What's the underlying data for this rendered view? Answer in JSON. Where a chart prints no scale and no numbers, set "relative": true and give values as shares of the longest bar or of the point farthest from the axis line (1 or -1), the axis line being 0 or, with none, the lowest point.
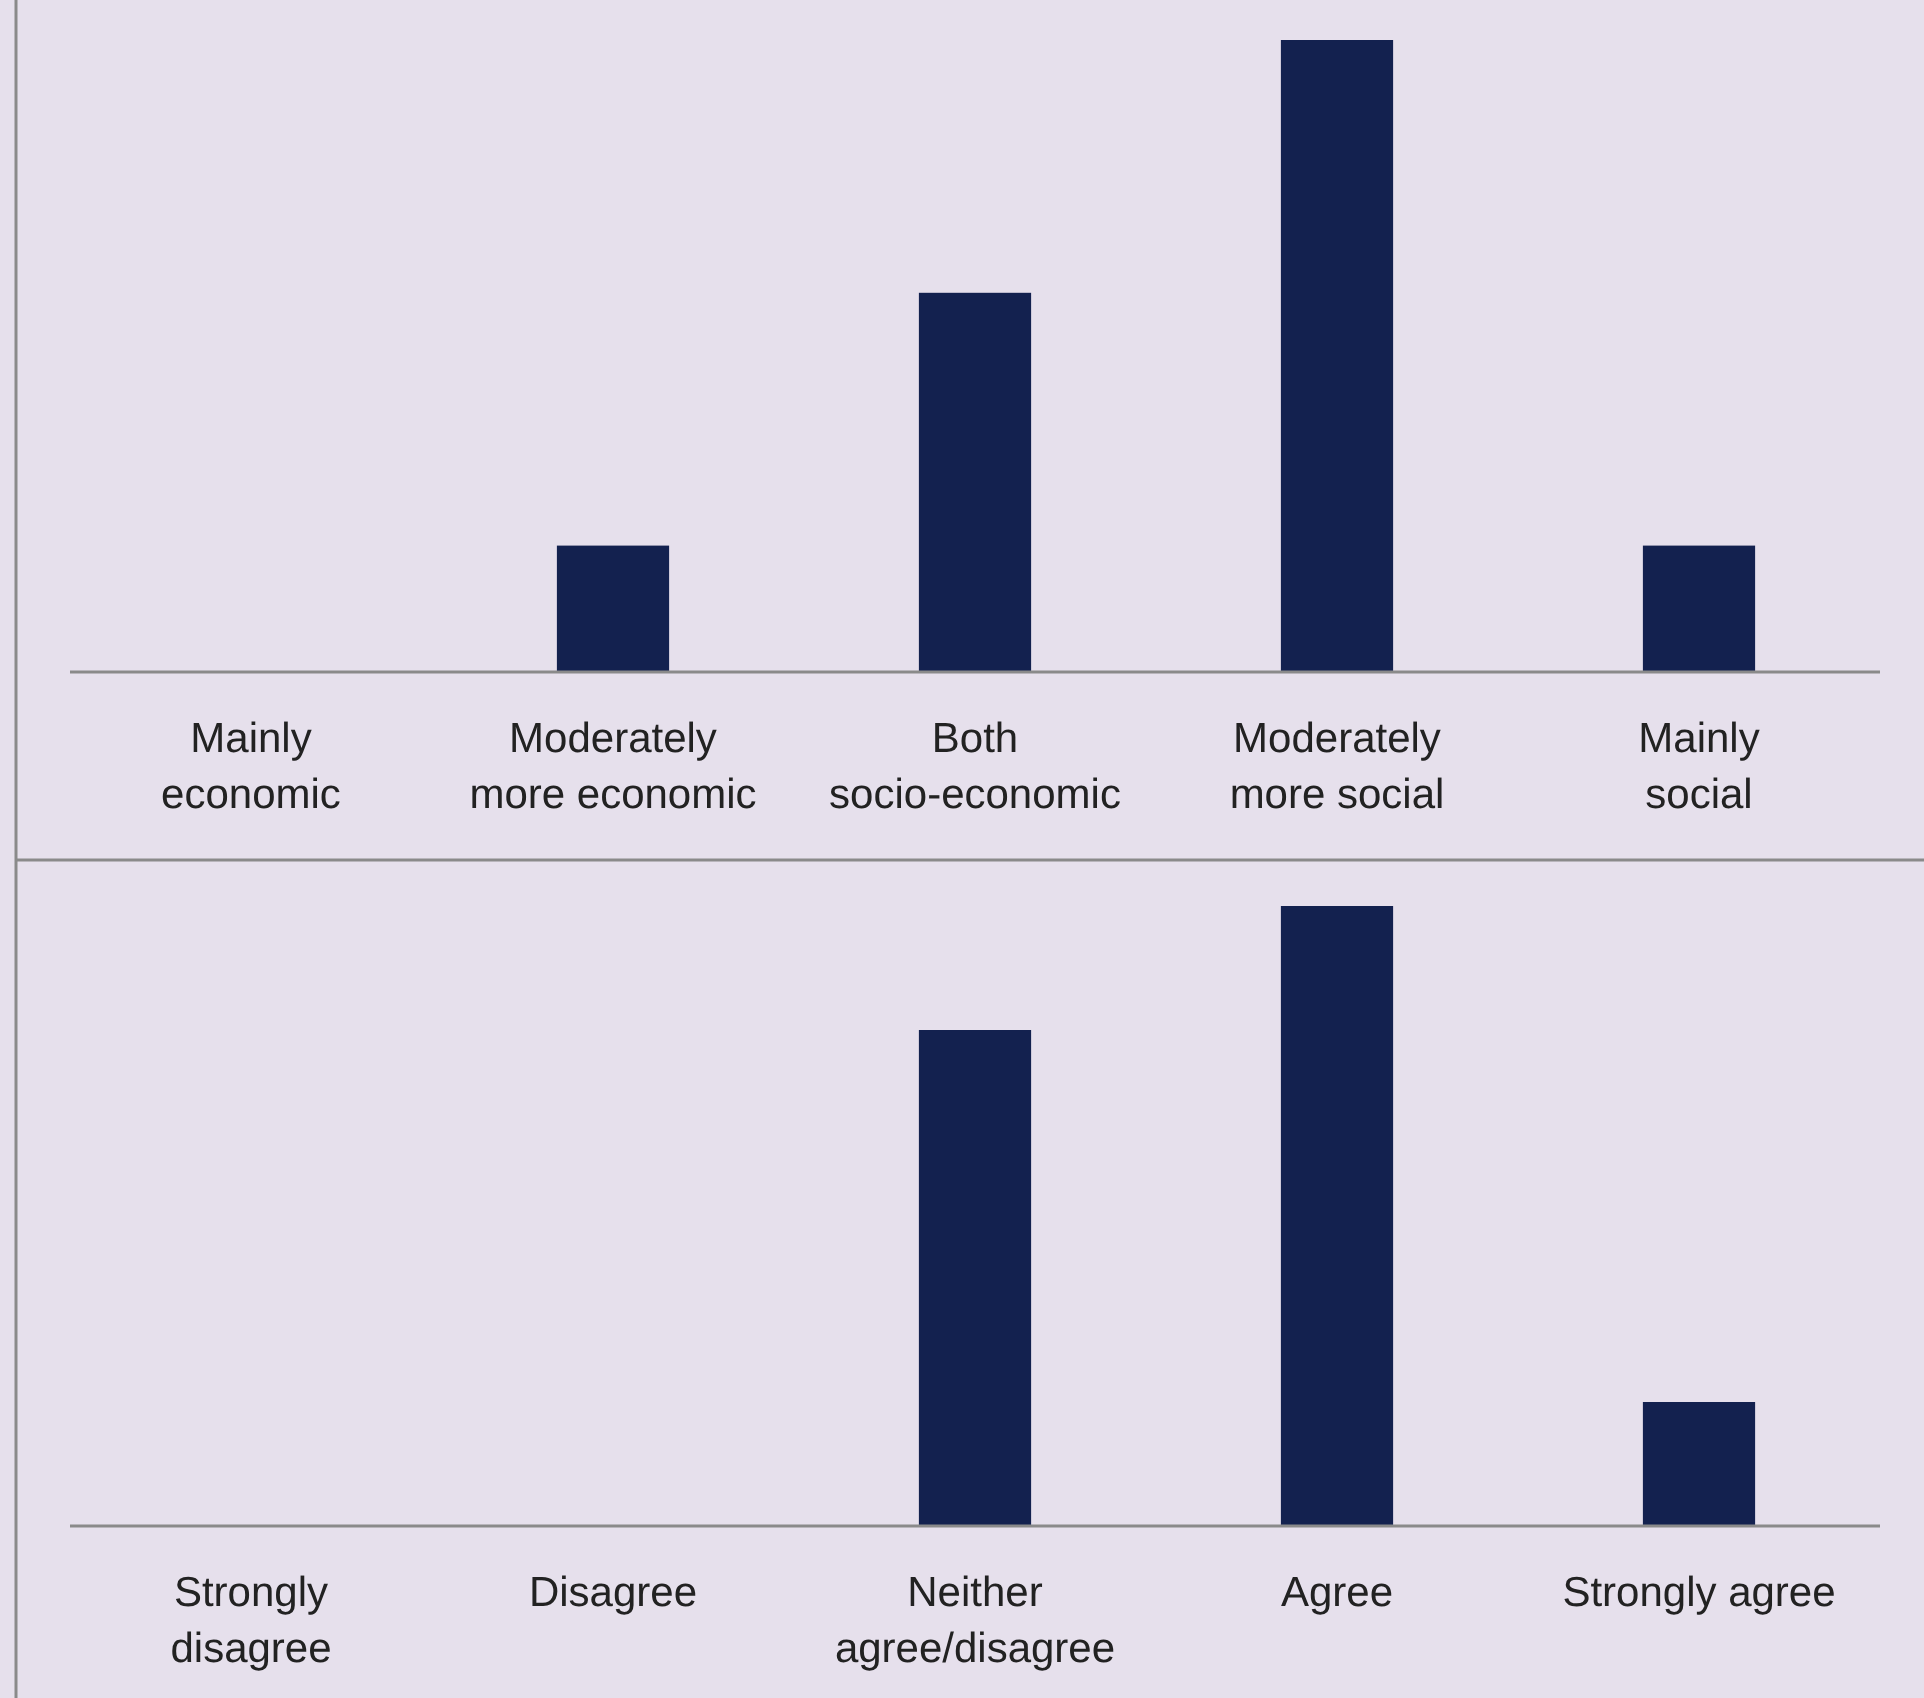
{
  "chart_data": [
    {
      "type": "bar",
      "relative": true,
      "color": "#13214f",
      "categories": [
        "Mainly\neconomic",
        "Moderately\nmore economic",
        "Both\nsocio-economic",
        "Moderately\nmore social",
        "Mainly\nsocial"
      ],
      "values": [
        0,
        0.2,
        0.6,
        1,
        0.2
      ]
    },
    {
      "type": "bar",
      "relative": true,
      "color": "#13214f",
      "categories": [
        "Strongly\ndisagree",
        "Disagree",
        "Neither\nagree/disagree",
        "Agree",
        "Strongly agree"
      ],
      "values": [
        0,
        0,
        0.8,
        1,
        0.2
      ]
    }
  ]
}
